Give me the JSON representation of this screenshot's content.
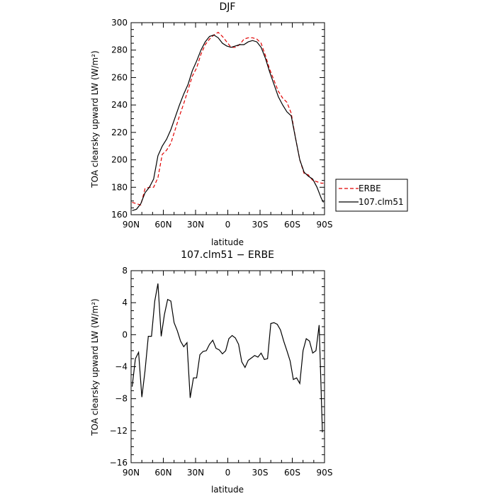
{
  "chart_data": [
    {
      "type": "line",
      "title": "DJF",
      "xlabel": "latitude",
      "ylabel": "TOA clearsky upward LW (W/m²)",
      "xlim": [
        90,
        -90
      ],
      "ylim": [
        160,
        300
      ],
      "xticks": [
        90,
        60,
        30,
        0,
        -30,
        -60,
        -90
      ],
      "xtick_labels": [
        "90N",
        "60N",
        "30N",
        "0",
        "30S",
        "60S",
        "90S"
      ],
      "yticks": [
        160,
        180,
        200,
        220,
        240,
        260,
        280,
        300
      ],
      "ytick_labels": [
        "160",
        "180",
        "200",
        "220",
        "240",
        "260",
        "280",
        "300"
      ],
      "legend_position": "right",
      "series": [
        {
          "name": "ERBE",
          "color": "#e00000",
          "dash": "dashed",
          "x": [
            89,
            85,
            81,
            77,
            73,
            69,
            65,
            61,
            57,
            53,
            49,
            45,
            41,
            37,
            33,
            29,
            25,
            21,
            17,
            13,
            9,
            5,
            1,
            -3,
            -7,
            -11,
            -15,
            -19,
            -23,
            -27,
            -31,
            -35,
            -39,
            -43,
            -47,
            -51,
            -55,
            -59,
            -63,
            -67,
            -71,
            -75,
            -79,
            -83,
            -87,
            -89
          ],
          "y": [
            169,
            168,
            167,
            179,
            180,
            180,
            187,
            204,
            207,
            212,
            222,
            232,
            241,
            251,
            261,
            267,
            277,
            284,
            288,
            291,
            293,
            290,
            286,
            282,
            282,
            284,
            288,
            289,
            289,
            288,
            285,
            276,
            266,
            258,
            250,
            245,
            242,
            234,
            216,
            200,
            190,
            189,
            185,
            184,
            183,
            183
          ]
        },
        {
          "name": "107.clm51",
          "color": "#000000",
          "dash": "solid",
          "x": [
            89,
            85,
            81,
            77,
            73,
            69,
            65,
            61,
            57,
            53,
            49,
            45,
            41,
            37,
            33,
            29,
            25,
            21,
            17,
            13,
            9,
            5,
            1,
            -3,
            -7,
            -11,
            -15,
            -19,
            -23,
            -27,
            -31,
            -35,
            -39,
            -43,
            -47,
            -51,
            -55,
            -59,
            -63,
            -67,
            -71,
            -75,
            -79,
            -83,
            -87,
            -89
          ],
          "y": [
            163,
            164,
            168,
            176,
            180,
            186,
            203,
            210,
            215,
            222,
            231,
            240,
            248,
            255,
            265,
            272,
            280,
            286,
            290,
            291,
            289,
            285,
            283,
            282,
            283,
            284,
            284,
            286,
            287,
            286,
            282,
            274,
            264,
            255,
            246,
            240,
            235,
            232,
            216,
            200,
            191,
            188,
            186,
            180,
            172,
            169
          ]
        }
      ]
    },
    {
      "type": "line",
      "title": "107.clm51 − ERBE",
      "xlabel": "latitude",
      "ylabel": "TOA clearsky upward LW (W/m²)",
      "xlim": [
        90,
        -90
      ],
      "ylim": [
        -16,
        8
      ],
      "xticks": [
        90,
        60,
        30,
        0,
        -30,
        -60,
        -90
      ],
      "xtick_labels": [
        "90N",
        "60N",
        "30N",
        "0",
        "30S",
        "60S",
        "90S"
      ],
      "yticks": [
        -16,
        -12,
        -8,
        -4,
        0,
        4,
        8
      ],
      "ytick_labels": [
        "−16",
        "−12",
        "−8",
        "−4",
        "0",
        "4",
        "8"
      ],
      "series": [
        {
          "color": "#000000",
          "dash": "solid",
          "x": [
            89,
            86,
            83,
            80,
            77,
            74,
            71,
            68,
            65,
            62,
            59,
            56,
            53,
            50,
            47,
            44,
            41,
            38,
            35,
            32,
            29,
            26,
            23,
            20,
            17,
            14,
            11,
            8,
            5,
            2,
            -1,
            -4,
            -7,
            -10,
            -13,
            -16,
            -19,
            -22,
            -25,
            -28,
            -31,
            -34,
            -37,
            -40,
            -43,
            -46,
            -49,
            -52,
            -55,
            -58,
            -61,
            -64,
            -67,
            -70,
            -73,
            -76,
            -79,
            -82,
            -85,
            -88
          ],
          "y": [
            -6.5,
            -3.0,
            -2.2,
            -7.8,
            -4.5,
            -0.2,
            -0.2,
            4.2,
            6.4,
            -0.2,
            2.5,
            4.4,
            4.2,
            1.5,
            0.5,
            -0.8,
            -1.5,
            -1.0,
            -7.9,
            -5.4,
            -5.4,
            -2.5,
            -2.1,
            -2.0,
            -1.2,
            -0.7,
            -1.7,
            -1.9,
            -2.4,
            -2.0,
            -0.5,
            -0.1,
            -0.4,
            -1.2,
            -3.4,
            -4.1,
            -3.2,
            -2.9,
            -2.6,
            -2.8,
            -2.3,
            -3.1,
            -3.0,
            1.4,
            1.5,
            1.3,
            0.6,
            -0.8,
            -2.0,
            -3.3,
            -5.6,
            -5.4,
            -6.1,
            -2.0,
            -0.5,
            -0.8,
            -2.3,
            -2.0,
            1.2,
            -12.2
          ]
        }
      ]
    }
  ]
}
